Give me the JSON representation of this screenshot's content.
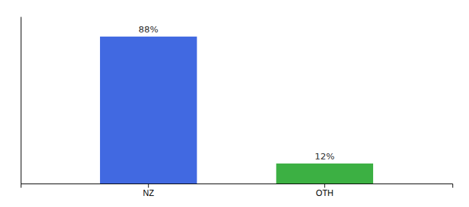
{
  "chart_data": {
    "type": "bar",
    "categories": [
      "NZ",
      "OTH"
    ],
    "values": [
      88,
      12
    ],
    "value_labels": [
      "88%",
      "12%"
    ],
    "colors": [
      "#4169e1",
      "#3cb043"
    ],
    "ylim": [
      0,
      100
    ],
    "data_labels": true,
    "tick_labels": "x"
  }
}
